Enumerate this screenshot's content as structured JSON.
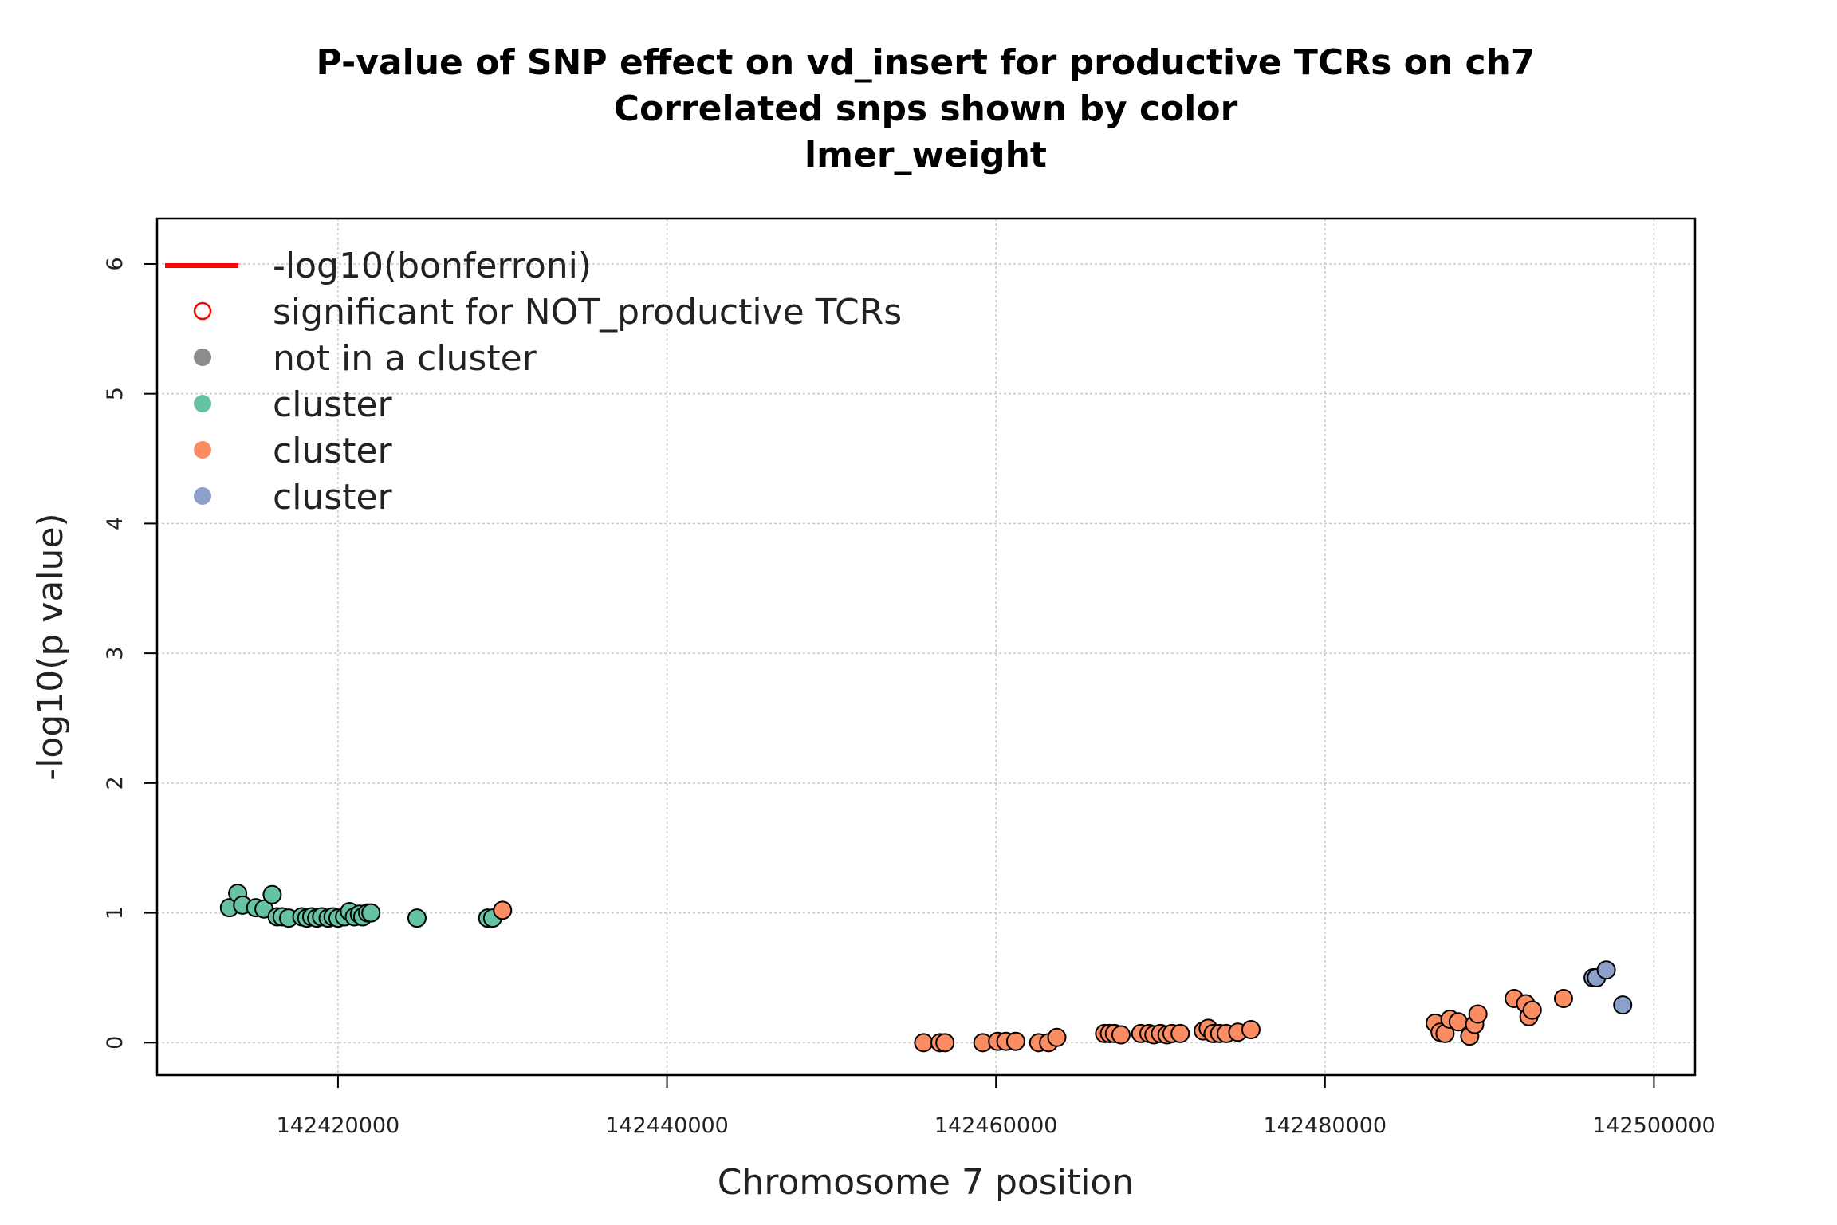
{
  "chart_data": {
    "type": "scatter",
    "title": [
      "P-value of SNP effect on vd_insert for productive TCRs on ch7",
      "Correlated snps shown by color",
      "lmer_weight"
    ],
    "xlabel": "Chromosome 7 position",
    "ylabel": "-log10(p value)",
    "xlim": [
      142409000,
      142502500
    ],
    "ylim": [
      -0.25,
      6.35
    ],
    "x_ticks": [
      142420000,
      142440000,
      142460000,
      142480000,
      142500000
    ],
    "x_tick_labels": [
      "142420000",
      "142440000",
      "142460000",
      "142480000",
      "142500000"
    ],
    "y_ticks": [
      0,
      1,
      2,
      3,
      4,
      5,
      6
    ],
    "y_tick_labels": [
      "0",
      "1",
      "2",
      "3",
      "4",
      "5",
      "6"
    ],
    "grid": true,
    "legend_position": "top-left",
    "legend": [
      {
        "label": "-log10(bonferroni)",
        "kind": "line",
        "color": "#ff0000"
      },
      {
        "label": "significant for NOT_productive TCRs",
        "kind": "open-circle",
        "color": "#ff0000"
      },
      {
        "label": "not in a cluster",
        "kind": "point",
        "color": "#8c8c8c"
      },
      {
        "label": "cluster",
        "kind": "point",
        "color": "#66c2a5"
      },
      {
        "label": "cluster",
        "kind": "point",
        "color": "#fc8d62"
      },
      {
        "label": "cluster",
        "kind": "point",
        "color": "#8da0cb"
      }
    ],
    "series": [
      {
        "color": "#66c2a5",
        "points": [
          [
            142413400,
            1.04
          ],
          [
            142413900,
            1.15
          ],
          [
            142414200,
            1.06
          ],
          [
            142415000,
            1.04
          ],
          [
            142415500,
            1.03
          ],
          [
            142416000,
            1.14
          ],
          [
            142416300,
            0.97
          ],
          [
            142416600,
            0.97
          ],
          [
            142417000,
            0.96
          ],
          [
            142417800,
            0.97
          ],
          [
            142418100,
            0.96
          ],
          [
            142418400,
            0.97
          ],
          [
            142418700,
            0.96
          ],
          [
            142419000,
            0.97
          ],
          [
            142419400,
            0.96
          ],
          [
            142419700,
            0.97
          ],
          [
            142420000,
            0.96
          ],
          [
            142420400,
            0.97
          ],
          [
            142420700,
            1.01
          ],
          [
            142421000,
            0.97
          ],
          [
            142421300,
            0.99
          ],
          [
            142421500,
            0.97
          ],
          [
            142421800,
            1.0
          ],
          [
            142422000,
            1.0
          ],
          [
            142424800,
            0.96
          ],
          [
            142429100,
            0.96
          ],
          [
            142429400,
            0.96
          ]
        ]
      },
      {
        "color": "#fc8d62",
        "points": [
          [
            142430000,
            1.02
          ],
          [
            142455600,
            0.0
          ],
          [
            142456600,
            0.0
          ],
          [
            142456900,
            0.0
          ],
          [
            142459200,
            0.0
          ],
          [
            142460100,
            0.01
          ],
          [
            142460600,
            0.01
          ],
          [
            142461200,
            0.01
          ],
          [
            142462600,
            0.0
          ],
          [
            142463200,
            0.0
          ],
          [
            142463700,
            0.04
          ],
          [
            142466600,
            0.07
          ],
          [
            142466900,
            0.07
          ],
          [
            142467200,
            0.07
          ],
          [
            142467600,
            0.06
          ],
          [
            142468800,
            0.07
          ],
          [
            142469300,
            0.07
          ],
          [
            142469600,
            0.06
          ],
          [
            142470000,
            0.07
          ],
          [
            142470400,
            0.06
          ],
          [
            142470700,
            0.07
          ],
          [
            142471200,
            0.07
          ],
          [
            142472600,
            0.09
          ],
          [
            142472900,
            0.11
          ],
          [
            142473200,
            0.07
          ],
          [
            142473600,
            0.07
          ],
          [
            142474000,
            0.07
          ],
          [
            142474700,
            0.08
          ],
          [
            142475500,
            0.1
          ],
          [
            142486700,
            0.15
          ],
          [
            142487000,
            0.08
          ],
          [
            142487300,
            0.07
          ],
          [
            142487600,
            0.18
          ],
          [
            142488100,
            0.16
          ],
          [
            142488800,
            0.05
          ],
          [
            142489100,
            0.14
          ],
          [
            142489300,
            0.22
          ],
          [
            142491500,
            0.34
          ],
          [
            142492200,
            0.3
          ],
          [
            142492400,
            0.2
          ],
          [
            142492600,
            0.25
          ],
          [
            142494500,
            0.34
          ]
        ]
      },
      {
        "color": "#8da0cb",
        "points": [
          [
            142496300,
            0.5
          ],
          [
            142496500,
            0.5
          ],
          [
            142497100,
            0.56
          ],
          [
            142498100,
            0.29
          ]
        ]
      }
    ]
  }
}
